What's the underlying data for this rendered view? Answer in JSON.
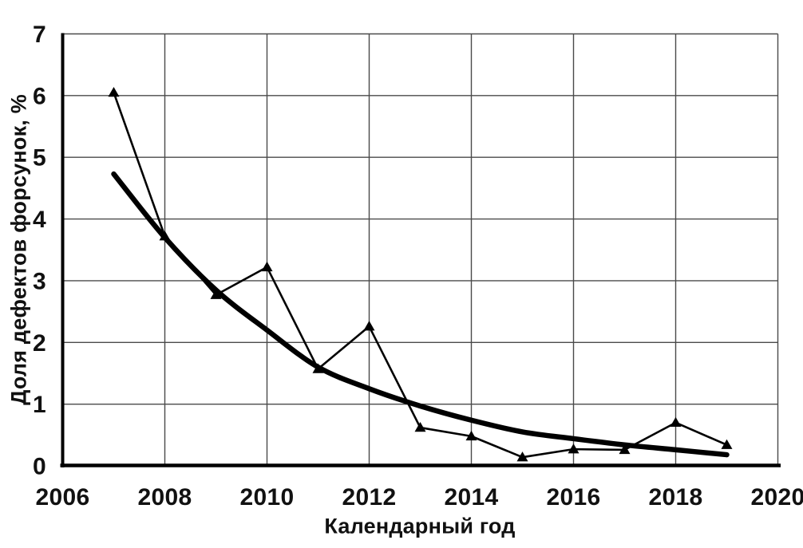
{
  "chart_data": {
    "type": "line",
    "title": "",
    "xlabel": "Календарный год",
    "ylabel": "Доля дефектов форсунок, %",
    "xlim": [
      2006,
      2020
    ],
    "ylim": [
      0,
      7
    ],
    "x_ticks": [
      2006,
      2008,
      2010,
      2012,
      2014,
      2016,
      2018,
      2020
    ],
    "y_ticks": [
      0,
      1,
      2,
      3,
      4,
      5,
      6,
      7
    ],
    "grid": true,
    "legend": false,
    "series": [
      {
        "id": "defect-share-data",
        "style": "line-with-triangle-markers",
        "color": "#000000",
        "x": [
          2007,
          2008,
          2009,
          2010,
          2011,
          2012,
          2013,
          2014,
          2015,
          2016,
          2017,
          2018,
          2019
        ],
        "values": [
          6.05,
          3.72,
          2.77,
          3.22,
          1.57,
          2.26,
          0.62,
          0.48,
          0.14,
          0.27,
          0.26,
          0.7,
          0.34
        ]
      },
      {
        "id": "trend-curve",
        "style": "smooth-thick-line",
        "color": "#000000",
        "x": [
          2007,
          2008,
          2009,
          2010,
          2011,
          2012,
          2013,
          2014,
          2015,
          2016,
          2017,
          2018,
          2019
        ],
        "values": [
          4.73,
          3.7,
          2.85,
          2.2,
          1.6,
          1.25,
          0.97,
          0.74,
          0.55,
          0.44,
          0.34,
          0.26,
          0.18
        ]
      }
    ],
    "colors": {
      "grid": "#4a4a4a",
      "axis": "#000000",
      "text": "#111111",
      "background": "#ffffff"
    }
  }
}
